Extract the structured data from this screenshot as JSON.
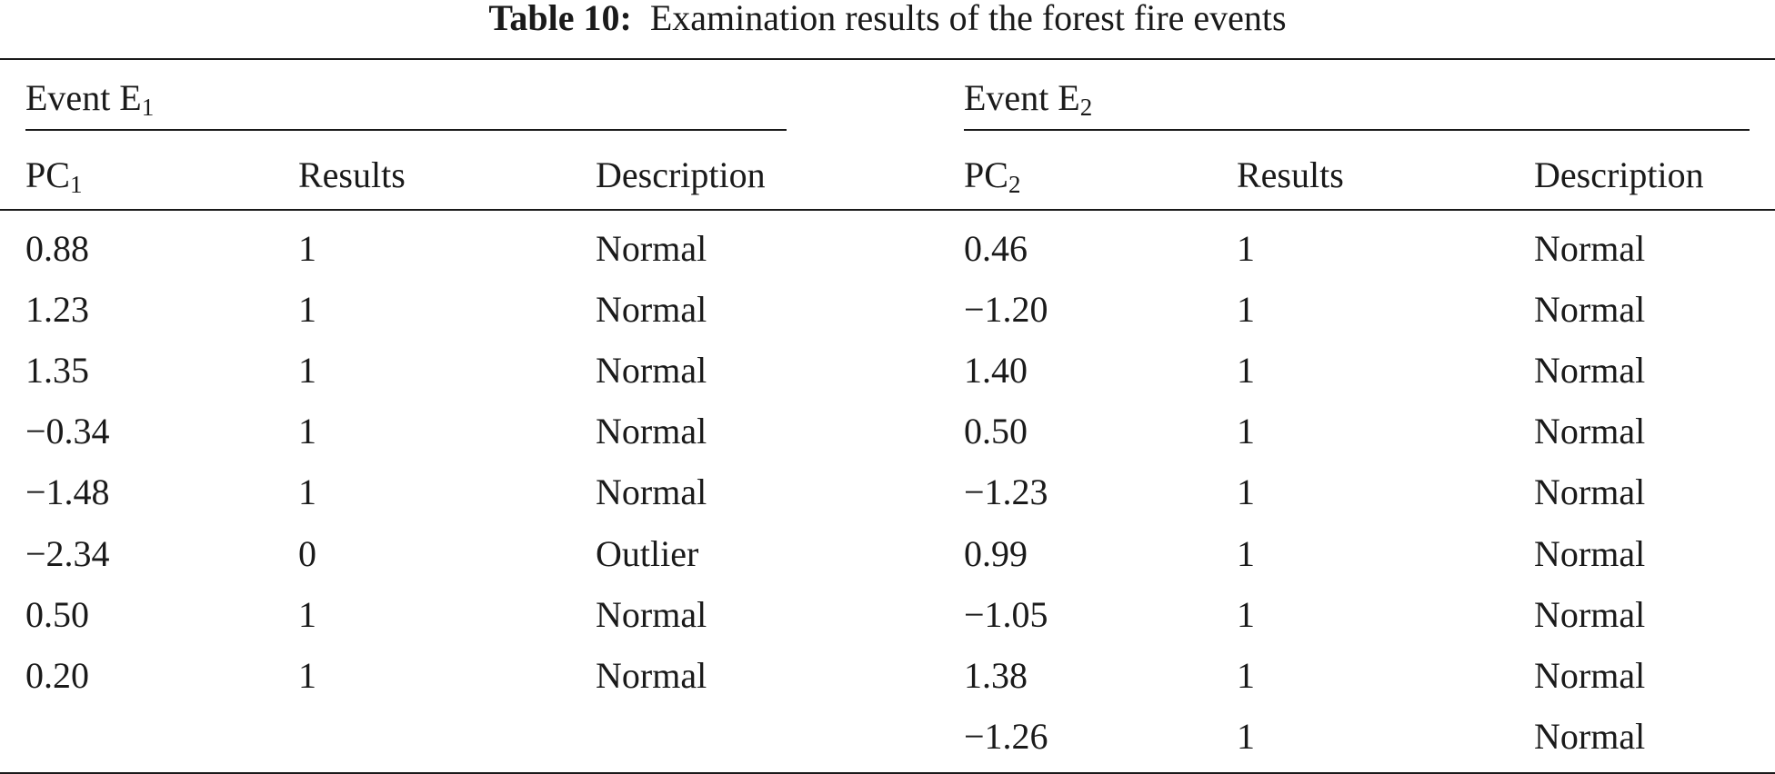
{
  "caption": {
    "label": "Table 10:",
    "text": "Examination results of the forest fire events"
  },
  "groups": [
    {
      "title": "Event E",
      "subscript": "1",
      "headers": [
        {
          "text": "PC",
          "subscript": "1"
        },
        {
          "text": "Results",
          "subscript": ""
        },
        {
          "text": "Description",
          "subscript": ""
        }
      ],
      "rows": [
        [
          "0.88",
          "1",
          "Normal"
        ],
        [
          "1.23",
          "1",
          "Normal"
        ],
        [
          "1.35",
          "1",
          "Normal"
        ],
        [
          "−0.34",
          "1",
          "Normal"
        ],
        [
          "−1.48",
          "1",
          "Normal"
        ],
        [
          "−2.34",
          "0",
          "Outlier"
        ],
        [
          "0.50",
          "1",
          "Normal"
        ],
        [
          "0.20",
          "1",
          "Normal"
        ]
      ]
    },
    {
      "title": "Event E",
      "subscript": "2",
      "headers": [
        {
          "text": "PC",
          "subscript": "2"
        },
        {
          "text": "Results",
          "subscript": ""
        },
        {
          "text": "Description",
          "subscript": ""
        }
      ],
      "rows": [
        [
          "0.46",
          "1",
          "Normal"
        ],
        [
          "−1.20",
          "1",
          "Normal"
        ],
        [
          "1.40",
          "1",
          "Normal"
        ],
        [
          "0.50",
          "1",
          "Normal"
        ],
        [
          "−1.23",
          "1",
          "Normal"
        ],
        [
          "0.99",
          "1",
          "Normal"
        ],
        [
          "−1.05",
          "1",
          "Normal"
        ],
        [
          "1.38",
          "1",
          "Normal"
        ],
        [
          "−1.26",
          "1",
          "Normal"
        ]
      ]
    }
  ]
}
